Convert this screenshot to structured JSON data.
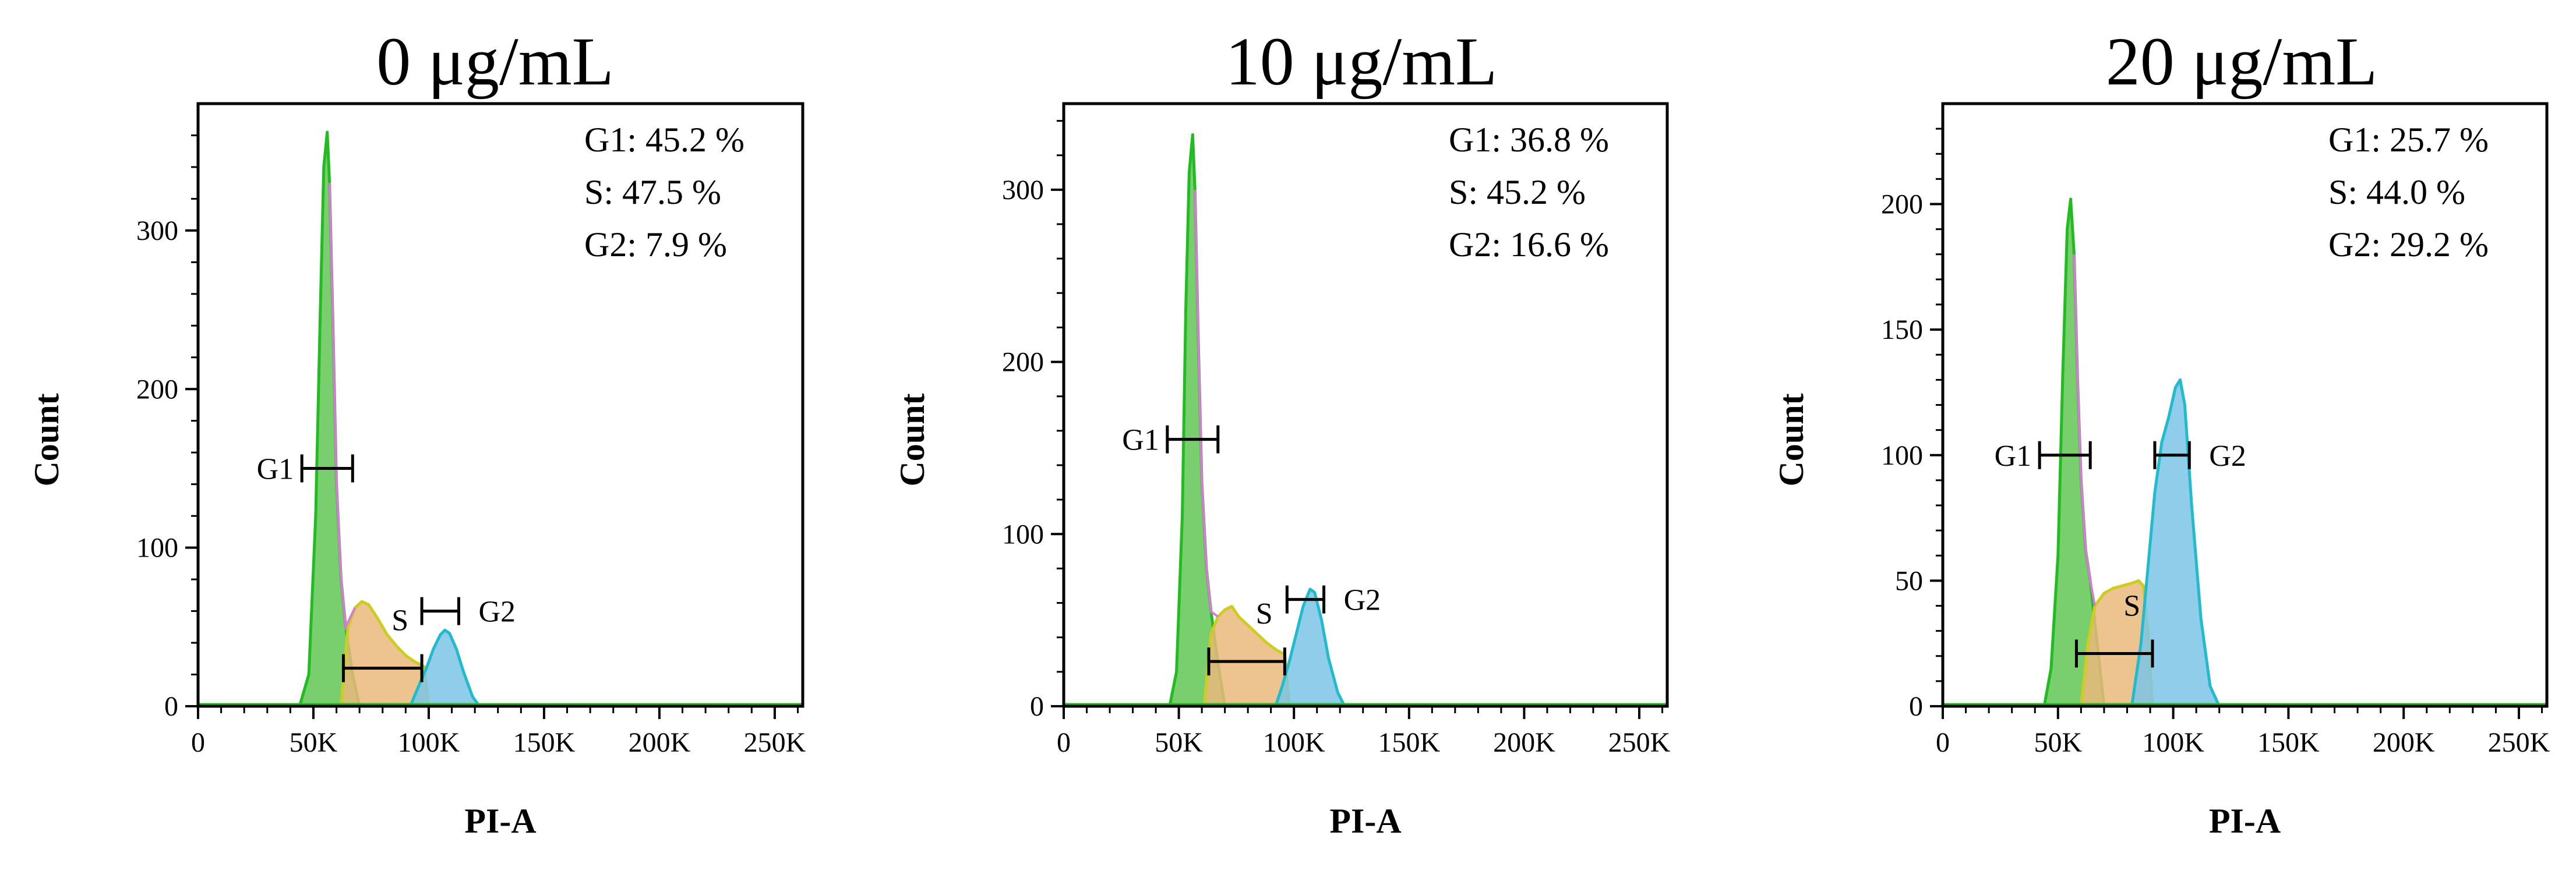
{
  "figure": {
    "description_free": true,
    "colors": {
      "G1": "#62c655",
      "G1_line": "#22bb22",
      "S": "#eab97b",
      "S_line": "#cccc22",
      "G2": "#7cc4e6",
      "G2_line": "#22bbcc",
      "overlap": "#d97ad9",
      "axis": "#000000"
    }
  },
  "chart_data": [
    {
      "type": "area",
      "title": "0 μg/mL",
      "xlabel": "PI-A",
      "ylabel": "Count",
      "xlim": [
        0,
        262144
      ],
      "ylim": [
        0,
        380
      ],
      "x_ticks": [
        0,
        50000,
        100000,
        150000,
        200000,
        250000
      ],
      "x_tick_labels": [
        "0",
        "50K",
        "100K",
        "150K",
        "200K",
        "250K"
      ],
      "y_ticks": [
        0,
        100,
        200,
        300
      ],
      "y_tick_labels": [
        "0",
        "100",
        "200",
        "300"
      ],
      "stats": [
        {
          "name": "G1",
          "text": "G1: 45.2 %",
          "value": 45.2
        },
        {
          "name": "S",
          "text": "S: 47.5 %",
          "value": 47.5
        },
        {
          "name": "G2",
          "text": "G2: 7.9 %",
          "value": 7.9
        }
      ],
      "series": [
        {
          "name": "G1",
          "color_key": "G1",
          "x": [
            44000,
            48000,
            51000,
            53000,
            54500,
            56000,
            57000,
            58500,
            60000,
            62000,
            64000,
            67000,
            70000
          ],
          "y": [
            0,
            20,
            120,
            250,
            340,
            362,
            330,
            240,
            140,
            80,
            50,
            20,
            0
          ]
        },
        {
          "name": "S",
          "color_key": "S",
          "x": [
            62000,
            65000,
            68000,
            71000,
            74000,
            78000,
            82000,
            86000,
            90000,
            94000,
            98000,
            100000
          ],
          "y": [
            0,
            50,
            62,
            66,
            64,
            55,
            45,
            38,
            32,
            28,
            25,
            0
          ]
        },
        {
          "name": "G2",
          "color_key": "G2",
          "x": [
            92000,
            96000,
            99000,
            102000,
            105000,
            107000,
            109000,
            112000,
            115000,
            119000,
            122000
          ],
          "y": [
            0,
            14,
            24,
            36,
            45,
            48,
            46,
            36,
            22,
            6,
            0
          ]
        }
      ],
      "gates": [
        {
          "label": "G1",
          "label_side": "left",
          "x_start": 45000,
          "x_end": 67000,
          "y": 150
        },
        {
          "label": "S",
          "label_side": "above",
          "x_start": 63000,
          "x_end": 97000,
          "y": 24
        },
        {
          "label": "G2",
          "label_side": "right",
          "x_start": 97000,
          "x_end": 113000,
          "y": 60
        }
      ]
    },
    {
      "type": "area",
      "title": "10 μg/mL",
      "xlabel": "PI-A",
      "ylabel": "Count",
      "xlim": [
        0,
        262144
      ],
      "ylim": [
        0,
        350
      ],
      "x_ticks": [
        0,
        50000,
        100000,
        150000,
        200000,
        250000
      ],
      "x_tick_labels": [
        "0",
        "50K",
        "100K",
        "150K",
        "200K",
        "250K"
      ],
      "y_ticks": [
        0,
        100,
        200,
        300
      ],
      "y_tick_labels": [
        "0",
        "100",
        "200",
        "300"
      ],
      "stats": [
        {
          "name": "G1",
          "text": "G1: 36.8 %",
          "value": 36.8
        },
        {
          "name": "S",
          "text": "S: 45.2 %",
          "value": 45.2
        },
        {
          "name": "G2",
          "text": "G2: 16.6 %",
          "value": 16.6
        }
      ],
      "series": [
        {
          "name": "G1",
          "color_key": "G1",
          "x": [
            46000,
            49000,
            51500,
            53000,
            54500,
            56000,
            57000,
            58500,
            60000,
            62000,
            64000,
            67000,
            70000
          ],
          "y": [
            0,
            20,
            110,
            230,
            310,
            332,
            300,
            210,
            130,
            80,
            55,
            25,
            0
          ]
        },
        {
          "name": "S",
          "color_key": "S",
          "x": [
            61000,
            64000,
            67000,
            70000,
            73000,
            76000,
            80000,
            84000,
            88000,
            92000,
            96000,
            98000
          ],
          "y": [
            0,
            42,
            52,
            56,
            58,
            52,
            47,
            42,
            37,
            33,
            30,
            0
          ]
        },
        {
          "name": "G2",
          "color_key": "G2",
          "x": [
            92000,
            95000,
            98000,
            101000,
            104000,
            107000,
            109000,
            112000,
            115000,
            119000,
            122000
          ],
          "y": [
            0,
            12,
            26,
            42,
            58,
            68,
            66,
            50,
            28,
            8,
            0
          ]
        }
      ],
      "gates": [
        {
          "label": "G1",
          "label_side": "left",
          "x_start": 45000,
          "x_end": 67000,
          "y": 155
        },
        {
          "label": "S",
          "label_side": "above",
          "x_start": 63000,
          "x_end": 96000,
          "y": 26
        },
        {
          "label": "G2",
          "label_side": "right",
          "x_start": 97000,
          "x_end": 113000,
          "y": 62
        }
      ]
    },
    {
      "type": "area",
      "title": "20 μg/mL",
      "xlabel": "PI-A",
      "ylabel": "Count",
      "xlim": [
        0,
        262144
      ],
      "ylim": [
        0,
        240
      ],
      "x_ticks": [
        0,
        50000,
        100000,
        150000,
        200000,
        250000
      ],
      "x_tick_labels": [
        "0",
        "50K",
        "100K",
        "150K",
        "200K",
        "250K"
      ],
      "y_ticks": [
        0,
        50,
        100,
        150,
        200
      ],
      "y_tick_labels": [
        "0",
        "50",
        "100",
        "150",
        "200"
      ],
      "stats": [
        {
          "name": "G1",
          "text": "G1: 25.7 %",
          "value": 25.7
        },
        {
          "name": "S",
          "text": "S: 44.0 %",
          "value": 44.0
        },
        {
          "name": "G2",
          "text": "G2: 29.2 %",
          "value": 29.2
        }
      ],
      "series": [
        {
          "name": "G1",
          "color_key": "G1",
          "x": [
            44000,
            47000,
            50000,
            52000,
            54000,
            55500,
            57000,
            58500,
            60000,
            62000,
            64000,
            67000,
            70000
          ],
          "y": [
            0,
            15,
            60,
            130,
            190,
            202,
            180,
            130,
            90,
            62,
            50,
            25,
            0
          ]
        },
        {
          "name": "S",
          "color_key": "S",
          "x": [
            60000,
            63000,
            66000,
            70000,
            74000,
            78000,
            82000,
            85000,
            87000,
            89000,
            91000
          ],
          "y": [
            0,
            25,
            40,
            45,
            47,
            48,
            49,
            50,
            48,
            30,
            0
          ]
        },
        {
          "name": "G2",
          "color_key": "G2",
          "x": [
            82000,
            86000,
            89000,
            92000,
            95000,
            98000,
            101000,
            103000,
            105000,
            108000,
            112000,
            116000,
            120000
          ],
          "y": [
            0,
            25,
            55,
            85,
            105,
            115,
            127,
            130,
            120,
            80,
            35,
            8,
            0
          ]
        }
      ],
      "gates": [
        {
          "label": "G1",
          "label_side": "left",
          "x_start": 42000,
          "x_end": 64000,
          "y": 100
        },
        {
          "label": "S",
          "label_side": "above",
          "x_start": 58000,
          "x_end": 91000,
          "y": 21
        },
        {
          "label": "G2",
          "label_side": "right",
          "x_start": 92000,
          "x_end": 107000,
          "y": 100
        }
      ]
    }
  ]
}
